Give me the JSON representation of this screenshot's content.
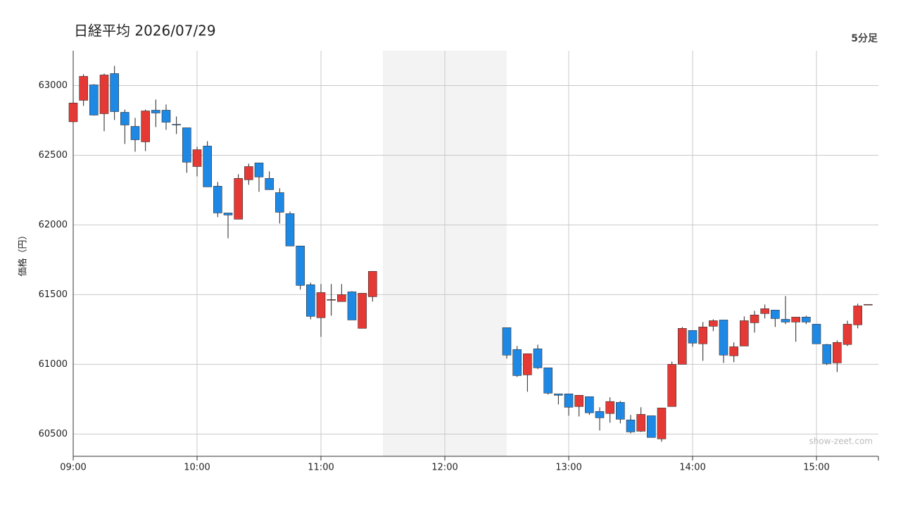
{
  "chart_data": {
    "type": "candlestick",
    "title": "日経平均 2026/07/29",
    "subtitle": "5分足",
    "y_label": "価格（円）",
    "watermark": "show-zeet.com",
    "up_color": "#e53935",
    "down_color": "#1e88e5",
    "grid": true,
    "break": [
      "11:30",
      "12:30"
    ],
    "xlim": [
      "09:00",
      "15:30"
    ],
    "xticks": [
      "09:00",
      "10:00",
      "11:00",
      "12:00",
      "13:00",
      "14:00",
      "15:00"
    ],
    "ylim": [
      60340,
      63250
    ],
    "yticks": [
      60500,
      61000,
      61500,
      62000,
      62500,
      63000
    ],
    "x": [
      "09:00",
      "09:05",
      "09:10",
      "09:15",
      "09:20",
      "09:25",
      "09:30",
      "09:35",
      "09:40",
      "09:45",
      "09:50",
      "09:55",
      "10:00",
      "10:05",
      "10:10",
      "10:15",
      "10:20",
      "10:25",
      "10:30",
      "10:35",
      "10:40",
      "10:45",
      "10:50",
      "10:55",
      "11:00",
      "11:05",
      "11:10",
      "11:15",
      "11:20",
      "11:25",
      "12:30",
      "12:35",
      "12:40",
      "12:45",
      "12:50",
      "12:55",
      "13:00",
      "13:05",
      "13:10",
      "13:15",
      "13:20",
      "13:25",
      "13:30",
      "13:35",
      "13:40",
      "13:45",
      "13:50",
      "13:55",
      "14:00",
      "14:05",
      "14:10",
      "14:15",
      "14:20",
      "14:25",
      "14:30",
      "14:35",
      "14:40",
      "14:45",
      "14:50",
      "14:55",
      "15:00",
      "15:05",
      "15:10",
      "15:15",
      "15:20",
      "15:25"
    ],
    "open": [
      62740,
      62894,
      63005,
      62798,
      63086,
      62808,
      62707,
      62596,
      62823,
      62823,
      62722,
      62697,
      62419,
      62566,
      62278,
      62086,
      62041,
      62324,
      62445,
      62334,
      62232,
      62081,
      61849,
      61571,
      61334,
      61465,
      61450,
      61520,
      61258,
      61485,
      61263,
      61106,
      60924,
      61111,
      60975,
      60788,
      60788,
      60697,
      60768,
      60662,
      60647,
      60727,
      60601,
      60520,
      60631,
      60465,
      60697,
      61000,
      61243,
      61147,
      61273,
      61318,
      61061,
      61131,
      61298,
      61364,
      61389,
      61323,
      61303,
      61339,
      61288,
      61142,
      61010,
      61142,
      61283,
      61430
    ],
    "high": [
      62880,
      63081,
      63010,
      63086,
      63141,
      62828,
      62768,
      62828,
      62899,
      62864,
      62778,
      62697,
      62561,
      62601,
      62308,
      62086,
      62364,
      62440,
      62445,
      62384,
      62263,
      62096,
      61849,
      61586,
      61576,
      61576,
      61576,
      61525,
      61510,
      61667,
      61263,
      61131,
      61076,
      61141,
      60975,
      60788,
      60788,
      60778,
      60768,
      60692,
      60763,
      60737,
      60637,
      60692,
      60631,
      60687,
      61020,
      61268,
      61243,
      61303,
      61323,
      61318,
      61157,
      61344,
      61384,
      61429,
      61389,
      61490,
      61339,
      61349,
      61288,
      61147,
      61172,
      61313,
      61435,
      61430
    ],
    "low": [
      62730,
      62854,
      62785,
      62672,
      62753,
      62581,
      62525,
      62530,
      62702,
      62682,
      62652,
      62374,
      62349,
      62273,
      62056,
      61904,
      62041,
      62288,
      62238,
      62253,
      62010,
      61849,
      61536,
      61323,
      61197,
      61349,
      61450,
      61318,
      61258,
      61450,
      61041,
      60909,
      60803,
      60965,
      60783,
      60712,
      60631,
      60626,
      60637,
      60525,
      60581,
      60576,
      60505,
      60515,
      60475,
      60444,
      60697,
      61000,
      61126,
      61025,
      61238,
      61010,
      61015,
      61131,
      61228,
      61329,
      61268,
      61288,
      61162,
      61288,
      61147,
      60995,
      60944,
      61131,
      61258,
      61430
    ],
    "close": [
      62875,
      63066,
      62788,
      63076,
      62813,
      62717,
      62611,
      62818,
      62803,
      62737,
      62720,
      62450,
      62540,
      62273,
      62086,
      62071,
      62334,
      62419,
      62344,
      62253,
      62091,
      61849,
      61566,
      61344,
      61515,
      61465,
      61500,
      61318,
      61510,
      61667,
      61066,
      60919,
      61076,
      60975,
      60793,
      60778,
      60692,
      60778,
      60652,
      60616,
      60733,
      60606,
      60515,
      60641,
      60475,
      60687,
      61000,
      61258,
      61152,
      61268,
      61313,
      61066,
      61126,
      61313,
      61354,
      61399,
      61328,
      61303,
      61339,
      61303,
      61147,
      61005,
      61157,
      61288,
      61419,
      61430
    ]
  }
}
